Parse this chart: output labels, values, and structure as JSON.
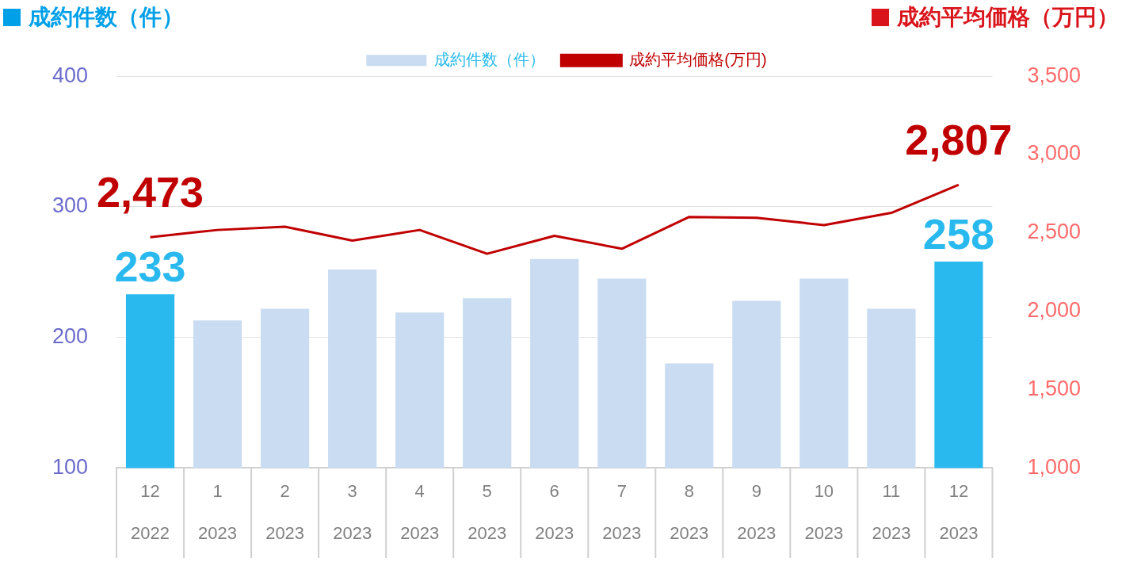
{
  "chart_data": {
    "type": "bar",
    "ylabel": "成約件数（件）",
    "y2label": "成約平均価格（万円）",
    "categories": [
      "12\n2022",
      "1\n2023",
      "2\n2023",
      "3\n2023",
      "4\n2023",
      "5\n2023",
      "6\n2023",
      "7\n2023",
      "8\n2023",
      "9\n2023",
      "10\n2023",
      "11\n2023",
      "12\n2023"
    ],
    "series": [
      {
        "name": "成約件数（件）",
        "color": "#c9dcf2",
        "colors": [
          "#29b9ee",
          "#c9dcf2",
          "#c9dcf2",
          "#c9dcf2",
          "#c9dcf2",
          "#c9dcf2",
          "#c9dcf2",
          "#c9dcf2",
          "#c9dcf2",
          "#c9dcf2",
          "#c9dcf2",
          "#c9dcf2",
          "#29b9ee"
        ],
        "values": [
          233,
          213,
          222,
          252,
          219,
          230,
          260,
          245,
          180,
          228,
          245,
          222,
          258
        ],
        "value_labels": [
          "233",
          null,
          null,
          null,
          null,
          null,
          null,
          null,
          null,
          null,
          null,
          null,
          "258"
        ]
      },
      {
        "name": "成約平均価格(万円)",
        "type": "line",
        "axis": "y2",
        "color": "#c00000",
        "values": [
          2473,
          2519,
          2540,
          2451,
          2519,
          2367,
          2482,
          2399,
          2602,
          2597,
          2550,
          2628,
          2807
        ],
        "value_labels": [
          "2,473",
          null,
          null,
          null,
          null,
          null,
          null,
          null,
          null,
          null,
          null,
          null,
          "2,807"
        ]
      }
    ],
    "ylim": [
      100,
      400
    ],
    "yticks": [
      100,
      200,
      300,
      400
    ],
    "y2lim": [
      1000,
      3500
    ],
    "y2ticks": [
      {
        "value": 1000,
        "label": "1,000"
      },
      {
        "value": 1500,
        "label": "1,500"
      },
      {
        "value": 2000,
        "label": "2,000"
      },
      {
        "value": 2500,
        "label": "2,500"
      },
      {
        "value": 3000,
        "label": "3,000"
      },
      {
        "value": 3500,
        "label": "3,500"
      }
    ],
    "grid": "y",
    "legend": "top",
    "marker": "none",
    "line_style": "solid"
  }
}
